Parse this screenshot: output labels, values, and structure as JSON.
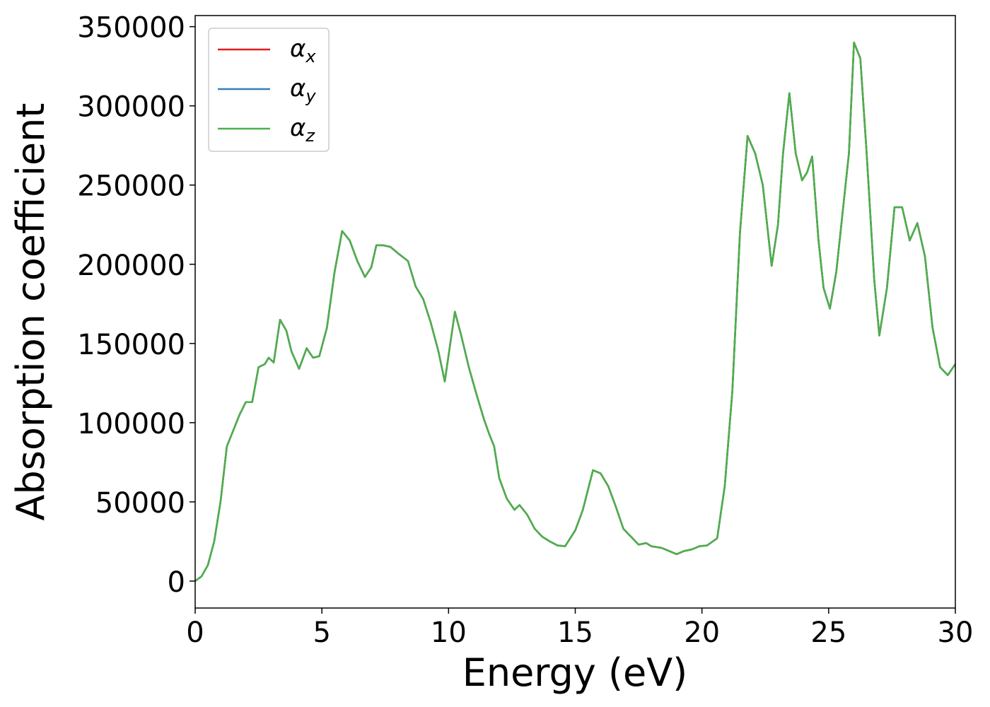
{
  "chart_data": {
    "type": "line",
    "xlabel": "Energy (eV)",
    "ylabel": "Absorption coefficient",
    "xlim": [
      0,
      30
    ],
    "xticks": [
      0,
      5,
      10,
      15,
      20,
      25,
      30
    ],
    "ylim": [
      -17000,
      357000
    ],
    "yticks": [
      0,
      50000,
      100000,
      150000,
      200000,
      250000,
      300000,
      350000
    ],
    "legend": "upper left",
    "x": [
      0,
      0.25,
      0.5,
      0.75,
      1.0,
      1.25,
      1.5,
      1.75,
      2.0,
      2.25,
      2.5,
      2.75,
      2.9,
      3.1,
      3.35,
      3.6,
      3.8,
      4.1,
      4.4,
      4.65,
      4.9,
      5.2,
      5.5,
      5.8,
      6.1,
      6.4,
      6.7,
      6.95,
      7.15,
      7.4,
      7.7,
      8.0,
      8.4,
      8.7,
      9.0,
      9.3,
      9.6,
      9.85,
      10.05,
      10.25,
      10.5,
      10.8,
      11.1,
      11.4,
      11.6,
      11.8,
      12.0,
      12.3,
      12.6,
      12.8,
      13.1,
      13.4,
      13.7,
      14.0,
      14.3,
      14.6,
      15.0,
      15.3,
      15.7,
      16.0,
      16.3,
      16.6,
      16.9,
      17.2,
      17.5,
      17.8,
      18.0,
      18.4,
      18.7,
      19.0,
      19.3,
      19.6,
      19.9,
      20.2,
      20.6,
      20.9,
      21.2,
      21.5,
      21.8,
      22.1,
      22.4,
      22.75,
      23.0,
      23.2,
      23.45,
      23.7,
      23.95,
      24.15,
      24.35,
      24.6,
      24.8,
      25.05,
      25.3,
      25.6,
      25.8,
      26.0,
      26.25,
      26.5,
      26.8,
      27.0,
      27.3,
      27.6,
      27.9,
      28.2,
      28.5,
      28.8,
      29.1,
      29.4,
      29.7,
      30.0
    ],
    "series": [
      {
        "name": "αx",
        "color": "#e41a1c",
        "values": [
          0,
          3000,
          10000,
          25000,
          50000,
          85000,
          95000,
          105000,
          113000,
          113000,
          135000,
          137000,
          141000,
          138000,
          165000,
          158000,
          145000,
          134000,
          147000,
          141000,
          142000,
          160000,
          195000,
          221000,
          215000,
          202000,
          192000,
          198000,
          212000,
          212000,
          211000,
          207000,
          202000,
          186000,
          178000,
          163000,
          145000,
          126000,
          148000,
          170000,
          155000,
          135000,
          118000,
          102000,
          93000,
          85000,
          65000,
          52000,
          45000,
          48000,
          42000,
          33000,
          28000,
          25000,
          22500,
          22000,
          32000,
          45000,
          70000,
          68000,
          60000,
          47000,
          33000,
          28000,
          23000,
          24000,
          22000,
          21000,
          19000,
          17000,
          19000,
          20000,
          22000,
          22500,
          27000,
          60000,
          120000,
          220000,
          281000,
          270000,
          250000,
          199000,
          225000,
          270000,
          308000,
          270000,
          253000,
          258000,
          268000,
          215000,
          185000,
          172000,
          195000,
          240000,
          270000,
          340000,
          330000,
          270000,
          190000,
          155000,
          185000,
          236000,
          236000,
          215000,
          226000,
          205000,
          160000,
          135000,
          130000,
          137000
        ]
      },
      {
        "name": "αy",
        "color": "#377eb8",
        "values": [
          0,
          3000,
          10000,
          25000,
          50000,
          85000,
          95000,
          105000,
          113000,
          113000,
          135000,
          137000,
          141000,
          138000,
          165000,
          158000,
          145000,
          134000,
          147000,
          141000,
          142000,
          160000,
          195000,
          221000,
          215000,
          202000,
          192000,
          198000,
          212000,
          212000,
          211000,
          207000,
          202000,
          186000,
          178000,
          163000,
          145000,
          126000,
          148000,
          170000,
          155000,
          135000,
          118000,
          102000,
          93000,
          85000,
          65000,
          52000,
          45000,
          48000,
          42000,
          33000,
          28000,
          25000,
          22500,
          22000,
          32000,
          45000,
          70000,
          68000,
          60000,
          47000,
          33000,
          28000,
          23000,
          24000,
          22000,
          21000,
          19000,
          17000,
          19000,
          20000,
          22000,
          22500,
          27000,
          60000,
          120000,
          220000,
          281000,
          270000,
          250000,
          199000,
          225000,
          270000,
          308000,
          270000,
          253000,
          258000,
          268000,
          215000,
          185000,
          172000,
          195000,
          240000,
          270000,
          340000,
          330000,
          270000,
          190000,
          155000,
          185000,
          236000,
          236000,
          215000,
          226000,
          205000,
          160000,
          135000,
          130000,
          137000
        ]
      },
      {
        "name": "αz",
        "color": "#4daf4a",
        "values": [
          0,
          3000,
          10000,
          25000,
          50000,
          85000,
          95000,
          105000,
          113000,
          113000,
          135000,
          137000,
          141000,
          138000,
          165000,
          158000,
          145000,
          134000,
          147000,
          141000,
          142000,
          160000,
          195000,
          221000,
          215000,
          202000,
          192000,
          198000,
          212000,
          212000,
          211000,
          207000,
          202000,
          186000,
          178000,
          163000,
          145000,
          126000,
          148000,
          170000,
          155000,
          135000,
          118000,
          102000,
          93000,
          85000,
          65000,
          52000,
          45000,
          48000,
          42000,
          33000,
          28000,
          25000,
          22500,
          22000,
          32000,
          45000,
          70000,
          68000,
          60000,
          47000,
          33000,
          28000,
          23000,
          24000,
          22000,
          21000,
          19000,
          17000,
          19000,
          20000,
          22000,
          22500,
          27000,
          60000,
          120000,
          220000,
          281000,
          270000,
          250000,
          199000,
          225000,
          270000,
          308000,
          270000,
          253000,
          258000,
          268000,
          215000,
          185000,
          172000,
          195000,
          240000,
          270000,
          340000,
          330000,
          270000,
          190000,
          155000,
          185000,
          236000,
          236000,
          215000,
          226000,
          205000,
          160000,
          135000,
          130000,
          137000
        ]
      }
    ]
  }
}
